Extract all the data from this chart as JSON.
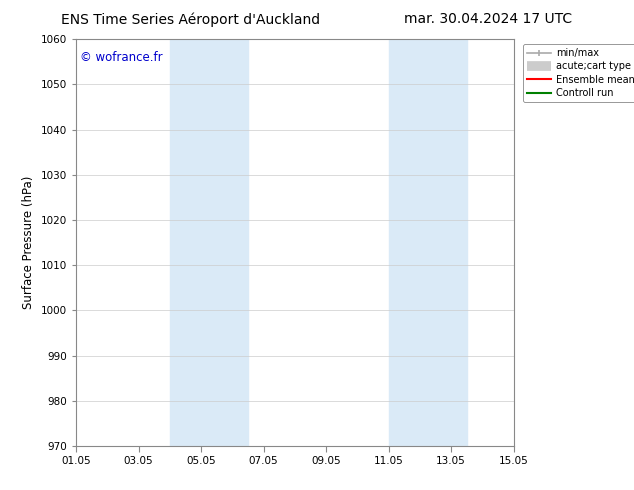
{
  "title_left": "ENS Time Series Aéroport d'Auckland",
  "title_right": "mar. 30.04.2024 17 UTC",
  "ylabel": "Surface Pressure (hPa)",
  "ylim": [
    970,
    1060
  ],
  "yticks": [
    970,
    980,
    990,
    1000,
    1010,
    1020,
    1030,
    1040,
    1050,
    1060
  ],
  "xticks_labels": [
    "01.05",
    "03.05",
    "05.05",
    "07.05",
    "09.05",
    "11.05",
    "13.05",
    "15.05"
  ],
  "xtick_positions": [
    0,
    2,
    4,
    6,
    8,
    10,
    12,
    14
  ],
  "watermark": "© wofrance.fr",
  "watermark_color": "#0000cc",
  "bg_color": "#ffffff",
  "plot_bg_color": "#ffffff",
  "shaded_bands": [
    {
      "x_start": 3,
      "x_end": 5.5,
      "color": "#daeaf7"
    },
    {
      "x_start": 10,
      "x_end": 12.5,
      "color": "#daeaf7"
    }
  ],
  "legend_items": [
    {
      "label": "min/max",
      "color": "#aaaaaa",
      "lw": 1.5
    },
    {
      "label": "acute;cart type",
      "color": "#cccccc",
      "lw": 6
    },
    {
      "label": "Ensemble mean run",
      "color": "#ff0000",
      "lw": 1.5
    },
    {
      "label": "Controll run",
      "color": "#008000",
      "lw": 1.5
    }
  ],
  "grid_color": "#cccccc",
  "tick_fontsize": 7.5,
  "label_fontsize": 8.5,
  "title_fontsize": 10
}
